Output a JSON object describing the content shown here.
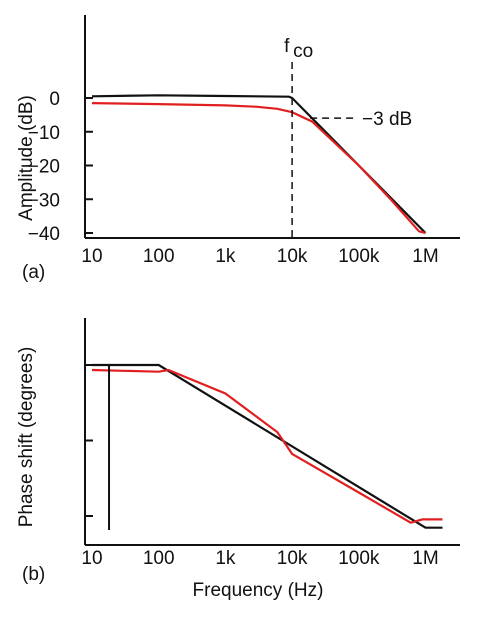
{
  "colors": {
    "ideal": "#111111",
    "actual": "#e02020"
  },
  "chart_data": [
    {
      "type": "line",
      "panel_label": "(a)",
      "ylabel": "Amplitude (dB)",
      "xlabel": "",
      "x_scale": "log",
      "xlim": [
        10,
        1800000
      ],
      "ylim": [
        -40,
        0
      ],
      "x_ticks": [
        {
          "value": 10,
          "label": "10"
        },
        {
          "value": 100,
          "label": "100"
        },
        {
          "value": 1000,
          "label": "1k"
        },
        {
          "value": 10000,
          "label": "10k"
        },
        {
          "value": 100000,
          "label": "100k"
        },
        {
          "value": 1000000,
          "label": "1M"
        }
      ],
      "y_ticks": [
        {
          "value": 0,
          "label": "0"
        },
        {
          "value": -10,
          "label": "−10"
        },
        {
          "value": -20,
          "label": "−20"
        },
        {
          "value": -30,
          "label": "−30"
        },
        {
          "value": -40,
          "label": "−40"
        }
      ],
      "annotations": {
        "cutoff_label_main": "f",
        "cutoff_label_sub": "co",
        "cutoff_x": 10000,
        "level_label": "−3 dB",
        "level_y": -3
      },
      "series": [
        {
          "role": "ideal",
          "x": [
            10,
            100,
            1000,
            9000,
            10000,
            100000,
            1000000
          ],
          "y": [
            0.5,
            0.8,
            0.6,
            0.4,
            0,
            -20,
            -40
          ]
        },
        {
          "role": "actual",
          "x": [
            10,
            100,
            1000,
            3000,
            6000,
            10000,
            20000,
            100000,
            300000,
            800000,
            1000000
          ],
          "y": [
            -1.5,
            -1.8,
            -2.2,
            -2.6,
            -3.2,
            -4.2,
            -7,
            -20,
            -30,
            -39.5,
            -40
          ]
        }
      ]
    },
    {
      "type": "line",
      "panel_label": "(b)",
      "ylabel": "Phase shift (degrees)",
      "xlabel": "Frequency (Hz)",
      "x_scale": "log",
      "xlim": [
        10,
        1800000
      ],
      "ylim": [
        -90,
        0
      ],
      "x_ticks": [
        {
          "value": 10,
          "label": "10"
        },
        {
          "value": 100,
          "label": "100"
        },
        {
          "value": 1000,
          "label": "1k"
        },
        {
          "value": 10000,
          "label": "10k"
        },
        {
          "value": 100000,
          "label": "100k"
        },
        {
          "value": 1000000,
          "label": "1M"
        }
      ],
      "y_ticks": [
        {
          "value": 0,
          "label": ""
        },
        {
          "value": -45,
          "label": ""
        },
        {
          "value": -90,
          "label": ""
        }
      ],
      "marker_x": 18,
      "series": [
        {
          "role": "ideal",
          "x": [
            10,
            100,
            1000000,
            1800000
          ],
          "y": [
            0,
            0,
            -97,
            -97
          ]
        },
        {
          "role": "actual",
          "x": [
            10,
            100,
            140,
            1000,
            6000,
            10000,
            100000,
            600000,
            900000,
            1800000
          ],
          "y": [
            -3,
            -4,
            -3,
            -17,
            -40,
            -53,
            -76,
            -94,
            -92,
            -92
          ]
        }
      ]
    }
  ]
}
